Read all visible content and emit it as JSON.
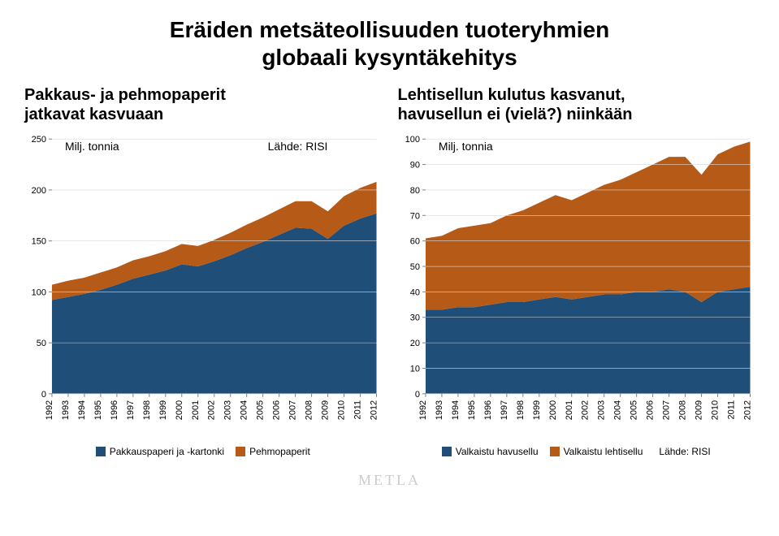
{
  "title_line1": "Eräiden metsäteollisuuden tuoteryhmien",
  "title_line2": "globaali kysyntäkehitys",
  "left_chart": {
    "subtitle_line1": "Pakkaus- ja pehmopaperit",
    "subtitle_line2": "jatkavat kasvuaan",
    "unit": "Milj. tonnia",
    "source": "Lähde: RISI",
    "type": "stacked-area",
    "ylim": [
      0,
      250
    ],
    "ytick_step": 50,
    "years": [
      "1992",
      "1993",
      "1994",
      "1995",
      "1996",
      "1997",
      "1998",
      "1999",
      "2000",
      "2001",
      "2002",
      "2003",
      "2004",
      "2005",
      "2006",
      "2007",
      "2008",
      "2009",
      "2010",
      "2011",
      "2012"
    ],
    "series": [
      {
        "name": "Pakkauspaperi ja -kartonki",
        "color": "#1f4e79",
        "values": [
          92,
          95,
          98,
          102,
          107,
          113,
          117,
          121,
          127,
          125,
          130,
          136,
          143,
          149,
          156,
          163,
          162,
          152,
          165,
          172,
          177
        ]
      },
      {
        "name": "Pehmopaperit",
        "color": "#b65a18",
        "values": [
          15,
          16,
          16,
          17,
          17,
          18,
          18,
          19,
          20,
          20,
          21,
          22,
          23,
          24,
          25,
          26,
          27,
          27,
          29,
          30,
          31
        ]
      }
    ],
    "tick_color": "#7f7f7f",
    "axis_font_size": 11
  },
  "right_chart": {
    "subtitle_line1": "Lehtisellun kulutus kasvanut,",
    "subtitle_line2": "havusellun ei (vielä?) niinkään",
    "unit": "Milj. tonnia",
    "type": "stacked-area",
    "ylim": [
      0,
      100
    ],
    "ytick_step": 10,
    "years": [
      "1992",
      "1993",
      "1994",
      "1995",
      "1996",
      "1997",
      "1998",
      "1999",
      "2000",
      "2001",
      "2002",
      "2003",
      "2004",
      "2005",
      "2006",
      "2007",
      "2008",
      "2009",
      "2010",
      "2011",
      "2012"
    ],
    "series": [
      {
        "name": "Valkaistu havusellu",
        "color": "#1f4e79",
        "values": [
          33,
          33,
          34,
          34,
          35,
          36,
          36,
          37,
          38,
          37,
          38,
          39,
          39,
          40,
          40,
          41,
          40,
          36,
          40,
          41,
          42
        ]
      },
      {
        "name": "Valkaistu lehtisellu",
        "color": "#b65a18",
        "values": [
          28,
          29,
          31,
          32,
          32,
          34,
          36,
          38,
          40,
          39,
          41,
          43,
          45,
          47,
          50,
          52,
          53,
          50,
          54,
          56,
          57
        ]
      }
    ],
    "source": "Lähde: RISI",
    "tick_color": "#7f7f7f",
    "axis_font_size": 11
  },
  "logo_text": "METLA",
  "background_color": "#ffffff"
}
